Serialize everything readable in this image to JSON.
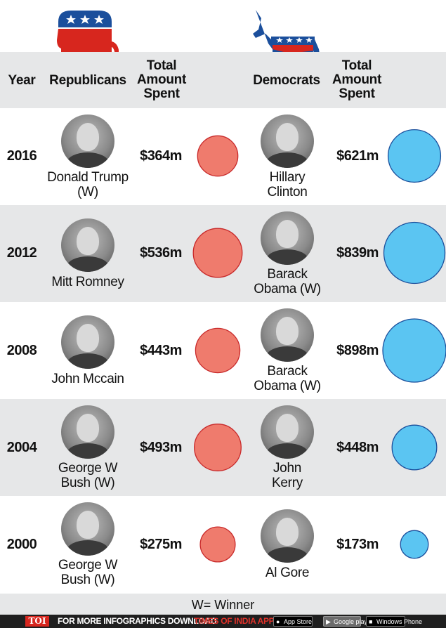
{
  "header": {
    "year": "Year",
    "republicans": "Republicans",
    "rep_total": "Total\nAmount\nSpent",
    "democrats": "Democrats",
    "dem_total": "Total\nAmount\nSpent"
  },
  "rows": [
    {
      "year": "2016",
      "rep_name": "Donald Trump\n(W)",
      "rep_amount": "$364m",
      "dem_name": "Hillary\nClinton",
      "dem_amount": "$621m"
    },
    {
      "year": "2012",
      "rep_name": "Mitt Romney",
      "rep_amount": "$536m",
      "dem_name": "Barack\nObama (W)",
      "dem_amount": "$839m"
    },
    {
      "year": "2008",
      "rep_name": "John Mccain",
      "rep_amount": "$443m",
      "dem_name": "Barack\nObama (W)",
      "dem_amount": "$898m"
    },
    {
      "year": "2004",
      "rep_name": "George W\nBush (W)",
      "rep_amount": "$493m",
      "dem_name": "John\nKerry",
      "dem_amount": "$448m"
    },
    {
      "year": "2000",
      "rep_name": "George W\nBush (W)",
      "rep_amount": "$275m",
      "dem_name": "Al Gore",
      "dem_amount": "$173m"
    }
  ],
  "chart_data": {
    "type": "bubble",
    "title": "",
    "categories": [
      "2016",
      "2012",
      "2008",
      "2004",
      "2000"
    ],
    "series": [
      {
        "name": "Republicans",
        "color": "#ef7b6d",
        "stroke": "#c8292a",
        "values": [
          364,
          536,
          443,
          493,
          275
        ]
      },
      {
        "name": "Democrats",
        "color": "#5bc5f2",
        "stroke": "#1b4f9c",
        "values": [
          621,
          839,
          898,
          448,
          173
        ]
      }
    ],
    "units": "$m"
  },
  "legend": {
    "winner": "W= Winner"
  },
  "footer": {
    "logo": "TOI",
    "promo": "FOR MORE  INFOGRAPHICS DOWNLOAD",
    "promo_app": "TIMES OF INDIA APP",
    "store_apple": "App Store",
    "store_google": "Google play",
    "store_windows": "Windows Phone"
  },
  "colors": {
    "rep_red": "#d7261e",
    "dem_blue": "#1b4f9c",
    "band_gray": "#e6e7e8"
  }
}
